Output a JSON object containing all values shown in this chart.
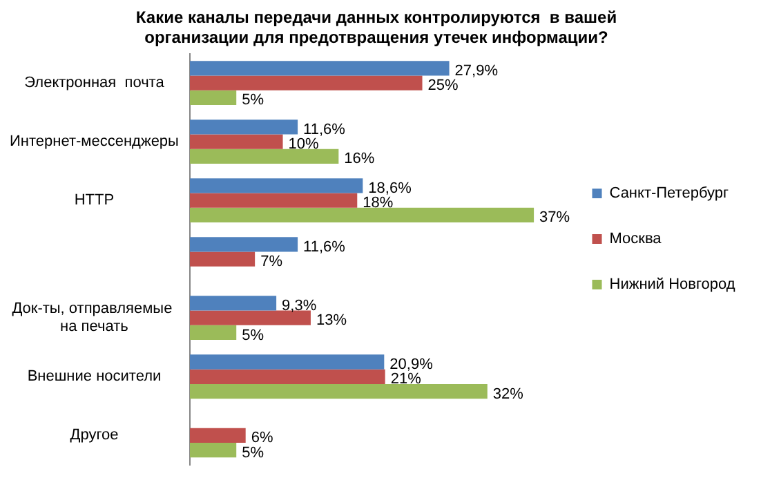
{
  "chart_data": {
    "type": "bar",
    "orientation": "horizontal",
    "title": "Какие каналы передачи данных контролируются  в вашей организации для предотвращения утечек информации?",
    "categories": [
      "Электронная  почта",
      "Интернет-мессенджеры",
      "HTTP",
      null,
      "Док-ты, отправляемые  на печать",
      "Внешние носители",
      "Другое"
    ],
    "series": [
      {
        "name": "Санкт-Петербург",
        "color": "#4f81bd",
        "values": [
          27.9,
          11.6,
          18.6,
          11.6,
          9.3,
          20.9,
          null
        ],
        "value_labels": [
          "27,9%",
          "11,6%",
          "18,6%",
          "11,6%",
          "9,3%",
          "20,9%",
          null
        ]
      },
      {
        "name": "Москва",
        "color": "#c0504d",
        "values": [
          25,
          10,
          18,
          7,
          13,
          21,
          6
        ],
        "value_labels": [
          "25%",
          "10%",
          "18%",
          "7%",
          "13%",
          "21%",
          "6%"
        ]
      },
      {
        "name": "Нижний Новгород",
        "color": "#9bbb59",
        "values": [
          5,
          16,
          37,
          null,
          5,
          32,
          5
        ],
        "value_labels": [
          "5%",
          "16%",
          "37%",
          null,
          "5%",
          "32%",
          "5%"
        ]
      }
    ],
    "legend": "right"
  }
}
